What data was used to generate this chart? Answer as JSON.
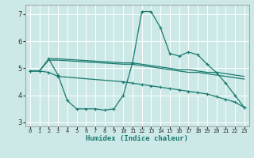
{
  "xlabel": "Humidex (Indice chaleur)",
  "ylabel": "",
  "bg_color": "#cce9e8",
  "line_color": "#1a7a6e",
  "grid_color": "#ffffff",
  "xlim": [
    -0.5,
    23.5
  ],
  "ylim": [
    2.85,
    7.35
  ],
  "yticks": [
    3,
    4,
    5,
    6,
    7
  ],
  "xticks": [
    0,
    1,
    2,
    3,
    4,
    5,
    6,
    7,
    8,
    9,
    10,
    11,
    12,
    13,
    14,
    15,
    16,
    17,
    18,
    19,
    20,
    21,
    22,
    23
  ],
  "line1_x": [
    0,
    1,
    2,
    3,
    4,
    5,
    6,
    7,
    8,
    9,
    10,
    11,
    12,
    13,
    14,
    15,
    16,
    17,
    18,
    19,
    20,
    21,
    22,
    23
  ],
  "line1_y": [
    4.9,
    4.9,
    5.35,
    4.75,
    3.8,
    3.5,
    3.5,
    3.5,
    3.45,
    3.5,
    4.0,
    5.2,
    7.1,
    7.1,
    6.5,
    5.55,
    5.45,
    5.6,
    5.5,
    5.15,
    4.85,
    4.45,
    4.0,
    3.55
  ],
  "line2_x": [
    2,
    3,
    10,
    11,
    12,
    13,
    14,
    15,
    16,
    17,
    18,
    19,
    20,
    21,
    22,
    23
  ],
  "line2_y": [
    5.35,
    5.35,
    5.2,
    5.2,
    5.15,
    5.1,
    5.05,
    5.0,
    4.95,
    4.95,
    4.9,
    4.85,
    4.85,
    4.8,
    4.75,
    4.7
  ],
  "line3_x": [
    0,
    1,
    2,
    3,
    10,
    11,
    12,
    13,
    14,
    15,
    16,
    17,
    18,
    19,
    20,
    21,
    22,
    23
  ],
  "line3_y": [
    4.9,
    4.9,
    5.3,
    5.3,
    5.15,
    5.15,
    5.1,
    5.05,
    5.0,
    4.95,
    4.9,
    4.85,
    4.85,
    4.8,
    4.75,
    4.7,
    4.65,
    4.6
  ],
  "line4_x": [
    0,
    1,
    2,
    3,
    10,
    11,
    12,
    13,
    14,
    15,
    16,
    17,
    18,
    19,
    20,
    21,
    22,
    23
  ],
  "line4_y": [
    4.9,
    4.9,
    4.85,
    4.7,
    4.5,
    4.45,
    4.4,
    4.35,
    4.3,
    4.25,
    4.2,
    4.15,
    4.1,
    4.05,
    3.95,
    3.85,
    3.75,
    3.55
  ]
}
